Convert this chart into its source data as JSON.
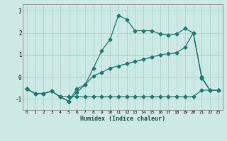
{
  "xlabel": "Humidex (Indice chaleur)",
  "background_color": "#cce9e5",
  "grid_color": "#aad4cf",
  "line_color": "#1f7a72",
  "ylim": [
    -1.5,
    3.3
  ],
  "xlim": [
    -0.5,
    23.5
  ],
  "yticks": [
    -1,
    0,
    1,
    2,
    3
  ],
  "xticks": [
    0,
    1,
    2,
    3,
    4,
    5,
    6,
    7,
    8,
    9,
    10,
    11,
    12,
    13,
    14,
    15,
    16,
    17,
    18,
    19,
    20,
    21,
    22,
    23
  ],
  "series1_x": [
    0,
    1,
    2,
    3,
    4,
    5,
    6,
    7,
    8,
    9,
    10,
    11,
    12,
    13,
    14,
    15,
    16,
    17,
    18,
    19,
    20,
    21,
    22,
    23
  ],
  "series1_y": [
    -0.55,
    -0.75,
    -0.75,
    -0.65,
    -0.9,
    -0.9,
    -0.9,
    -0.9,
    -0.9,
    -0.9,
    -0.9,
    -0.9,
    -0.9,
    -0.9,
    -0.9,
    -0.9,
    -0.9,
    -0.9,
    -0.9,
    -0.9,
    -0.9,
    -0.6,
    -0.6,
    -0.6
  ],
  "series2_x": [
    0,
    1,
    2,
    3,
    4,
    5,
    6,
    7,
    8,
    9,
    10,
    11,
    12,
    13,
    14,
    15,
    16,
    17,
    18,
    19,
    20,
    21,
    22,
    23
  ],
  "series2_y": [
    -0.55,
    -0.75,
    -0.75,
    -0.65,
    -0.9,
    -1.1,
    -0.7,
    -0.35,
    0.05,
    0.2,
    0.4,
    0.5,
    0.6,
    0.7,
    0.8,
    0.9,
    1.0,
    1.05,
    1.1,
    1.35,
    2.0,
    0.0,
    -0.6,
    -0.6
  ],
  "series3_x": [
    0,
    1,
    2,
    3,
    4,
    5,
    6,
    7,
    8,
    9,
    10,
    11,
    12,
    13,
    14,
    15,
    16,
    17,
    18,
    19,
    20,
    21,
    22,
    23
  ],
  "series3_y": [
    -0.55,
    -0.75,
    -0.75,
    -0.65,
    -0.9,
    -1.1,
    -0.55,
    -0.35,
    0.4,
    1.2,
    1.7,
    2.8,
    2.6,
    2.1,
    2.1,
    2.1,
    1.95,
    1.9,
    1.95,
    2.2,
    2.0,
    -0.05,
    -0.6,
    -0.6
  ]
}
